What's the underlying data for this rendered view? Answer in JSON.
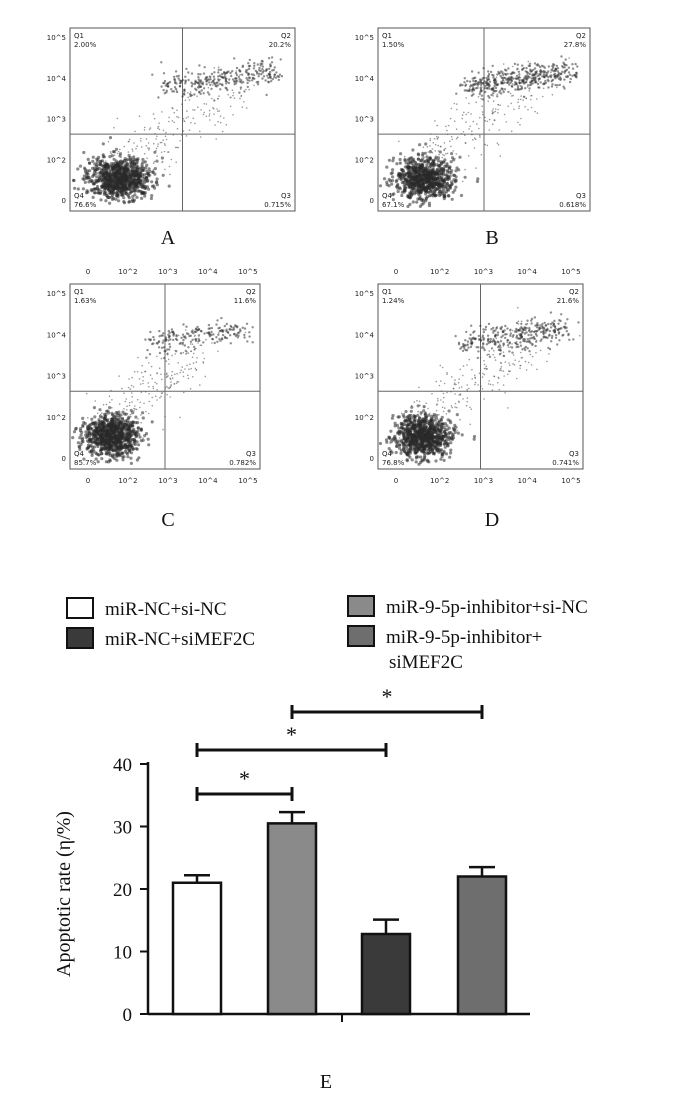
{
  "flow_panels": [
    {
      "label": "A",
      "q1": "2.00%",
      "q2": "20.2%",
      "q3": "0.715%",
      "q4": "76.6%",
      "upper_density": 0.55,
      "lower_density": 1.0,
      "x_ticks": [],
      "y_ticks": [
        "10^5",
        "10^4",
        "10^3",
        "10^2",
        "0"
      ]
    },
    {
      "label": "B",
      "q1": "1.50%",
      "q2": "27.8%",
      "q3": "0.618%",
      "q4": "67.1%",
      "upper_density": 0.8,
      "lower_density": 0.9,
      "x_ticks": [],
      "y_ticks": [
        "10^5",
        "10^4",
        "10^3",
        "10^2",
        "0"
      ]
    },
    {
      "label": "C",
      "q1": "1.63%",
      "q2": "11.6%",
      "q3": "0.782%",
      "q4": "85.7%",
      "upper_density": 0.35,
      "lower_density": 1.0,
      "x_ticks": [
        "0",
        "10^2",
        "10^3",
        "10^4",
        "10^5"
      ],
      "y_ticks": [
        "10^5",
        "10^4",
        "10^3",
        "10^2",
        "0"
      ]
    },
    {
      "label": "D",
      "q1": "1.24%",
      "q2": "21.6%",
      "q3": "0.741%",
      "q4": "76.8%",
      "upper_density": 0.6,
      "lower_density": 0.95,
      "x_ticks": [
        "0",
        "10^2",
        "10^3",
        "10^4",
        "10^5"
      ],
      "y_ticks": [
        "10^5",
        "10^4",
        "10^3",
        "10^2",
        "0"
      ]
    }
  ],
  "quadrant_names": [
    "Q1",
    "Q2",
    "Q3",
    "Q4"
  ],
  "chart_data": {
    "type": "bar",
    "panel_label": "E",
    "ylabel": "Apoptotic rate (η/%)",
    "ylim": [
      0,
      40
    ],
    "y_ticks": [
      0,
      10,
      20,
      30,
      40
    ],
    "series": [
      {
        "name": "miR-NC+si-NC",
        "value": 21.0,
        "error": 1.2,
        "color": "#ffffff"
      },
      {
        "name": "miR-9-5p-inhibitor+si-NC",
        "value": 30.5,
        "error": 1.8,
        "color": "#8a8a8a"
      },
      {
        "name": "miR-NC+siMEF2C",
        "value": 12.8,
        "error": 2.3,
        "color": "#3a3a3a"
      },
      {
        "name": "miR-9-5p-inhibitor+siMEF2C",
        "value": 22.0,
        "error": 1.5,
        "color": "#6e6e6e"
      }
    ],
    "legend": [
      {
        "text": "miR-NC+si-NC",
        "color": "#ffffff"
      },
      {
        "text": "miR-NC+siMEF2C",
        "color": "#3a3a3a"
      },
      {
        "text": "miR-9-5p-inhibitor+si-NC",
        "color": "#8a8a8a"
      },
      {
        "text": "miR-9-5p-inhibitor+",
        "text2": "siMEF2C",
        "color": "#6e6e6e"
      }
    ],
    "significance": [
      {
        "from": 0,
        "to": 1,
        "label": "*"
      },
      {
        "from": 0,
        "to": 2,
        "label": "*"
      },
      {
        "from": 1,
        "to": 3,
        "label": "*"
      }
    ]
  }
}
